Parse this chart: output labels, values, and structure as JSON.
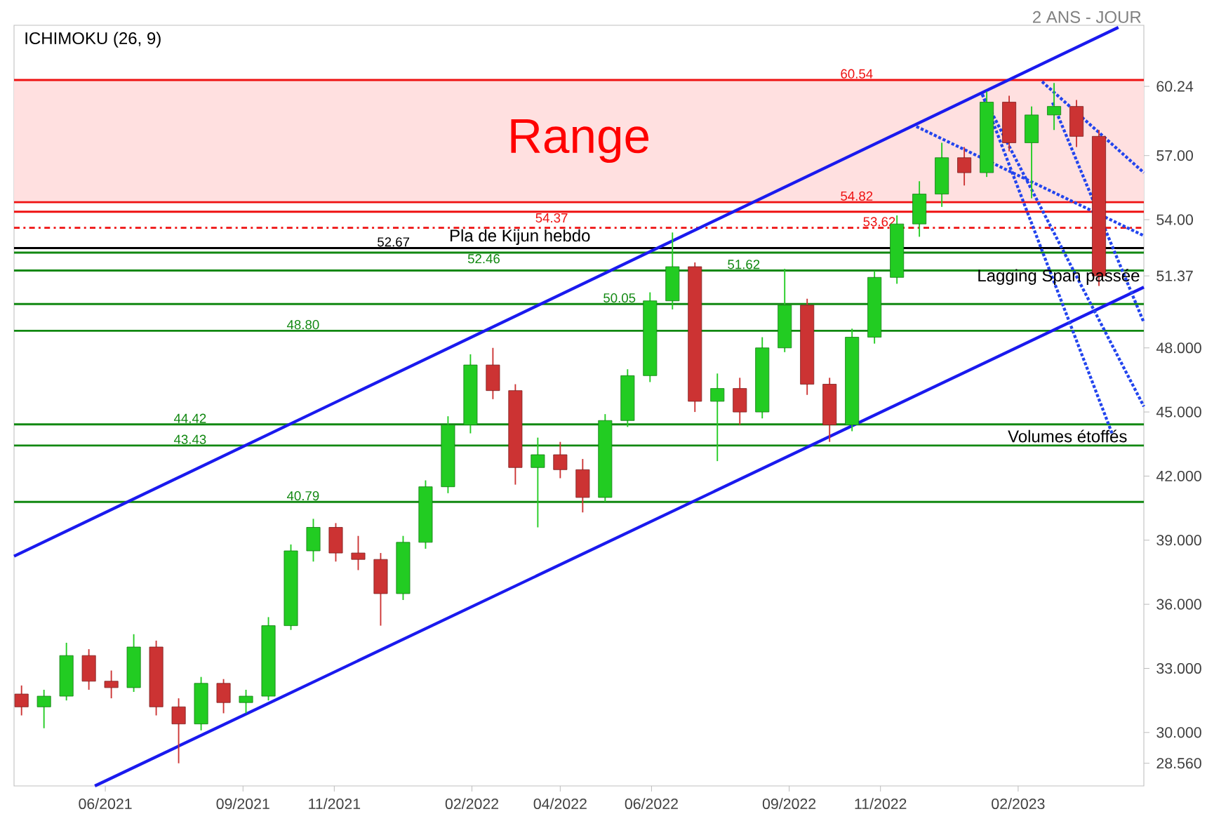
{
  "chart_data": {
    "type": "candlestick",
    "subtitle": "2 ANS - JOUR",
    "x": [
      "2021-04-06",
      "2021-04-21",
      "2021-05-06",
      "2021-05-21",
      "2021-06-05",
      "2021-06-20",
      "2021-07-05",
      "2021-07-20",
      "2021-08-04",
      "2021-08-19",
      "2021-09-03",
      "2021-09-18",
      "2021-10-03",
      "2021-10-18",
      "2021-11-02",
      "2021-11-17",
      "2021-12-02",
      "2021-12-17",
      "2022-01-01",
      "2022-01-16",
      "2022-01-31",
      "2022-02-15",
      "2022-03-02",
      "2022-03-17",
      "2022-04-01",
      "2022-04-16",
      "2022-05-01",
      "2022-05-16",
      "2022-05-31",
      "2022-06-15",
      "2022-06-30",
      "2022-07-15",
      "2022-07-30",
      "2022-08-14",
      "2022-08-29",
      "2022-09-13",
      "2022-09-28",
      "2022-10-13",
      "2022-10-28",
      "2022-11-12",
      "2022-11-27",
      "2022-12-12",
      "2022-12-27",
      "2023-01-11",
      "2023-01-26",
      "2023-02-10",
      "2023-02-25",
      "2023-03-12",
      "2023-03-27"
    ],
    "ohlc": [
      [
        31.8,
        32.2,
        30.8,
        31.2
      ],
      [
        31.2,
        32.0,
        30.2,
        31.7
      ],
      [
        31.7,
        34.2,
        31.5,
        33.6
      ],
      [
        33.6,
        33.9,
        32.0,
        32.4
      ],
      [
        32.4,
        32.9,
        31.6,
        32.1
      ],
      [
        32.1,
        34.6,
        31.9,
        34.0
      ],
      [
        34.0,
        34.3,
        30.8,
        31.2
      ],
      [
        31.2,
        31.6,
        28.56,
        30.4
      ],
      [
        30.4,
        32.6,
        30.1,
        32.3
      ],
      [
        32.3,
        32.5,
        30.9,
        31.4
      ],
      [
        31.4,
        32.0,
        30.9,
        31.7
      ],
      [
        31.7,
        35.4,
        31.5,
        35.0
      ],
      [
        35.0,
        38.8,
        34.8,
        38.5
      ],
      [
        38.5,
        40.0,
        38.0,
        39.6
      ],
      [
        39.6,
        39.8,
        38.0,
        38.4
      ],
      [
        38.4,
        39.2,
        37.6,
        38.1
      ],
      [
        38.1,
        38.4,
        35.0,
        36.5
      ],
      [
        36.5,
        39.2,
        36.2,
        38.9
      ],
      [
        38.9,
        41.8,
        38.6,
        41.5
      ],
      [
        41.5,
        44.8,
        41.2,
        44.4
      ],
      [
        44.4,
        47.7,
        44.0,
        47.2
      ],
      [
        47.2,
        48.0,
        45.6,
        46.0
      ],
      [
        46.0,
        46.3,
        41.6,
        42.4
      ],
      [
        42.4,
        43.8,
        39.6,
        43.0
      ],
      [
        43.0,
        43.6,
        41.9,
        42.3
      ],
      [
        42.3,
        42.8,
        40.3,
        41.0
      ],
      [
        41.0,
        44.9,
        40.8,
        44.6
      ],
      [
        44.6,
        47.0,
        44.3,
        46.7
      ],
      [
        46.7,
        50.6,
        46.4,
        50.2
      ],
      [
        50.2,
        53.4,
        49.8,
        51.8
      ],
      [
        51.8,
        52.0,
        45.0,
        45.5
      ],
      [
        45.5,
        46.8,
        42.7,
        46.1
      ],
      [
        46.1,
        46.6,
        44.4,
        45.0
      ],
      [
        45.0,
        48.5,
        44.7,
        48.0
      ],
      [
        48.0,
        51.7,
        47.8,
        50.0
      ],
      [
        50.0,
        50.3,
        45.8,
        46.3
      ],
      [
        46.3,
        46.6,
        43.6,
        44.4
      ],
      [
        44.4,
        48.9,
        44.1,
        48.5
      ],
      [
        48.5,
        51.6,
        48.2,
        51.3
      ],
      [
        51.3,
        54.2,
        51.0,
        53.8
      ],
      [
        53.8,
        55.8,
        53.2,
        55.2
      ],
      [
        55.2,
        57.6,
        54.6,
        56.9
      ],
      [
        56.9,
        57.4,
        55.6,
        56.2
      ],
      [
        56.2,
        60.0,
        56.0,
        59.5
      ],
      [
        59.5,
        59.8,
        57.2,
        57.6
      ],
      [
        57.6,
        59.3,
        55.0,
        58.9
      ],
      [
        58.9,
        60.4,
        58.2,
        59.3
      ],
      [
        59.3,
        59.6,
        57.4,
        57.9
      ],
      [
        57.9,
        58.2,
        50.9,
        51.37
      ]
    ],
    "colors": [
      "#cc3333",
      "#22cc22",
      "#22cc22",
      "#cc3333",
      "#cc3333",
      "#22cc22",
      "#cc3333",
      "#cc3333",
      "#22cc22",
      "#cc3333",
      "#22cc22",
      "#22cc22",
      "#22cc22",
      "#22cc22",
      "#cc3333",
      "#cc3333",
      "#cc3333",
      "#22cc22",
      "#22cc22",
      "#22cc22",
      "#22cc22",
      "#cc3333",
      "#cc3333",
      "#22cc22",
      "#cc3333",
      "#cc3333",
      "#22cc22",
      "#22cc22",
      "#22cc22",
      "#22cc22",
      "#cc3333",
      "#22cc22",
      "#cc3333",
      "#22cc22",
      "#22cc22",
      "#cc3333",
      "#cc3333",
      "#22cc22",
      "#22cc22",
      "#22cc22",
      "#22cc22",
      "#22cc22",
      "#cc3333",
      "#22cc22",
      "#cc3333",
      "#22cc22",
      "#22cc22",
      "#cc3333",
      "#cc3333"
    ],
    "series": [
      {
        "type": "line",
        "x": [
          "2021-04-01",
          "2023-04-09"
        ],
        "values": [
          38.25,
          63.0
        ],
        "color": "#1a1aee",
        "line_style": "solid"
      },
      {
        "type": "line",
        "x": [
          "2021-05-25",
          "2023-04-26"
        ],
        "values": [
          27.5,
          50.84
        ],
        "color": "#1a1aee",
        "line_style": "solid"
      },
      {
        "type": "line",
        "x": [
          "2022-11-25",
          "2023-04-26"
        ],
        "values": [
          58.36,
          53.25
        ],
        "color": "#2244ee",
        "line_style": "dotted"
      },
      {
        "type": "line",
        "x": [
          "2023-01-08",
          "2023-04-05"
        ],
        "values": [
          59.87,
          43.95
        ],
        "color": "#2244ee",
        "line_style": "dotted"
      },
      {
        "type": "line",
        "x": [
          "2023-02-17",
          "2023-04-26"
        ],
        "values": [
          60.46,
          56.2
        ],
        "color": "#2244ee",
        "line_style": "dotted"
      },
      {
        "type": "line",
        "x": [
          "2023-02-24",
          "2023-04-26"
        ],
        "values": [
          59.48,
          49.19
        ],
        "color": "#2244ee",
        "line_style": "dotted"
      },
      {
        "type": "line",
        "x": [
          "2023-01-08",
          "2023-04-26"
        ],
        "values": [
          59.87,
          45.26
        ],
        "color": "#2244ee",
        "line_style": "dotted"
      }
    ],
    "xlim": [
      "2021-04-01",
      "2023-04-26"
    ],
    "ylim": [
      27.5,
      63.1
    ],
    "xticks": [
      {
        "value": "2021-06-01",
        "label": "06/2021"
      },
      {
        "value": "2021-09-01",
        "label": "09/2021"
      },
      {
        "value": "2021-11-01",
        "label": "11/2021"
      },
      {
        "value": "2022-02-01",
        "label": "02/2022"
      },
      {
        "value": "2022-04-01",
        "label": "04/2022"
      },
      {
        "value": "2022-06-01",
        "label": "06/2022"
      },
      {
        "value": "2022-09-01",
        "label": "09/2022"
      },
      {
        "value": "2022-11-01",
        "label": "11/2022"
      },
      {
        "value": "2023-02-01",
        "label": "02/2023"
      }
    ],
    "yticks": [
      {
        "value": 28.56,
        "label": "28.560"
      },
      {
        "value": 30,
        "label": "30.000"
      },
      {
        "value": 33,
        "label": "33.000"
      },
      {
        "value": 36,
        "label": "36.000"
      },
      {
        "value": 39,
        "label": "39.000"
      },
      {
        "value": 42,
        "label": "42.000"
      },
      {
        "value": 45,
        "label": "45.000"
      },
      {
        "value": 48,
        "label": "48.000"
      },
      {
        "value": 51.37,
        "label": "51.37"
      },
      {
        "value": 54,
        "label": "54.00"
      },
      {
        "value": 57,
        "label": "57.00"
      },
      {
        "value": 60.24,
        "label": "60.24"
      }
    ],
    "ref_lines": [
      {
        "axis": "y",
        "value": 60.54,
        "label": "60.54",
        "color": "#ee1111"
      },
      {
        "axis": "y",
        "value": 54.82,
        "label": "54.82",
        "color": "#ee1111"
      },
      {
        "axis": "y",
        "value": 54.37,
        "label": "54.37",
        "color": "#ee1111"
      },
      {
        "axis": "y",
        "value": 53.62,
        "label": "53.62",
        "color": "#ee1111",
        "line_style": "dashed"
      },
      {
        "axis": "y",
        "value": 52.67,
        "label": "52.67",
        "color": "#000000"
      },
      {
        "axis": "y",
        "value": 52.46,
        "label": "52.46",
        "color": "#118811"
      },
      {
        "axis": "y",
        "value": 51.62,
        "label": "51.62",
        "color": "#118811"
      },
      {
        "axis": "y",
        "value": 50.05,
        "label": "50.05",
        "color": "#118811"
      },
      {
        "axis": "y",
        "value": 48.8,
        "label": "48.80",
        "color": "#118811"
      },
      {
        "axis": "y",
        "value": 44.42,
        "label": "44.42",
        "color": "#118811"
      },
      {
        "axis": "y",
        "value": 43.43,
        "label": "43.43",
        "color": "#118811"
      },
      {
        "axis": "y",
        "value": 40.79,
        "label": "40.79",
        "color": "#118811"
      }
    ],
    "bands": [
      {
        "axis": "y",
        "from": 54.82,
        "to": 60.54,
        "label": "Range",
        "color": "#ffe0e0"
      }
    ],
    "annotations": [
      "ICHIMOKU (26, 9)",
      {
        "text": "Pla de Kijun hebdo",
        "x": "2022-03-05",
        "y": 52.67
      },
      {
        "text": "Lagging Span passée",
        "x": "2023-02-28",
        "y": 50.8
      },
      {
        "text": "Volumes étoffés",
        "x": "2023-03-06",
        "y": 43.43
      }
    ]
  }
}
